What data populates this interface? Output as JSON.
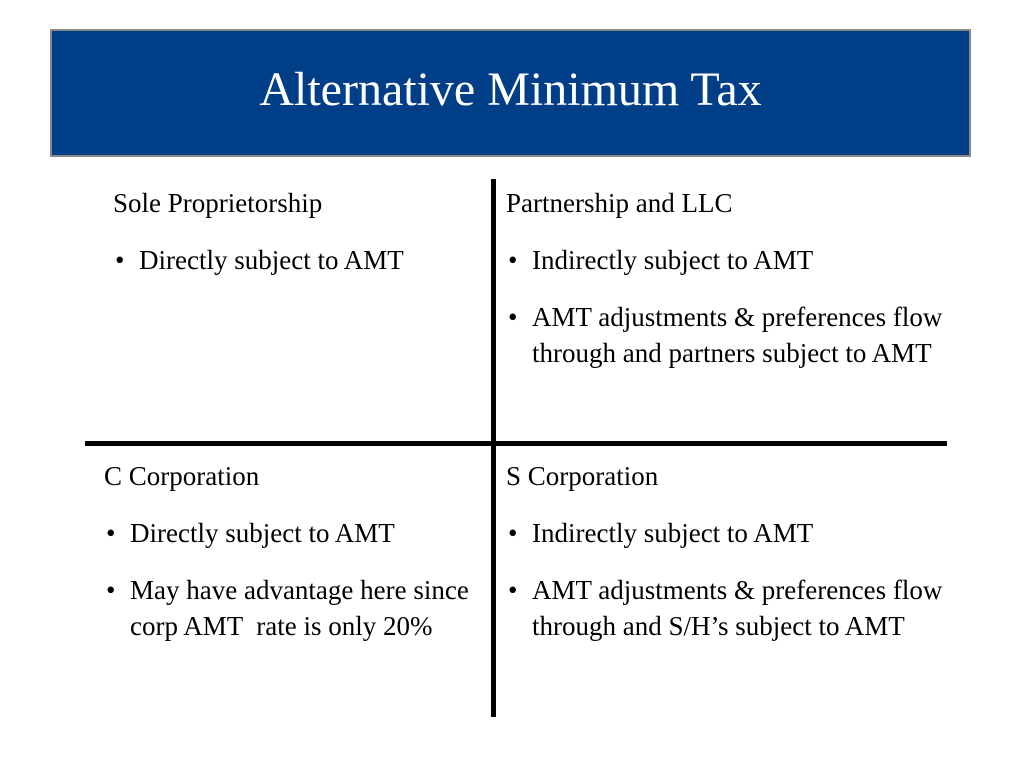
{
  "title": "Alternative Minimum Tax",
  "colors": {
    "title_bar": "#003f87",
    "title_text": "#ffffff",
    "divider": "#000000"
  },
  "quadrants": {
    "top_left": {
      "heading": "Sole Proprietorship",
      "bullets": [
        "Directly subject to AMT"
      ]
    },
    "top_right": {
      "heading": "Partnership and LLC",
      "bullets": [
        "Indirectly subject to AMT",
        "AMT adjustments & preferences flow through and partners subject to AMT"
      ]
    },
    "bottom_left": {
      "heading": "C Corporation",
      "bullets": [
        "Directly subject to AMT",
        "May have advantage here since corp AMT  rate is only 20%"
      ]
    },
    "bottom_right": {
      "heading": "S Corporation",
      "bullets": [
        "Indirectly subject to AMT",
        "AMT adjustments & preferences flow through and S/H’s subject to AMT"
      ]
    }
  },
  "bullet_symbol": "•"
}
